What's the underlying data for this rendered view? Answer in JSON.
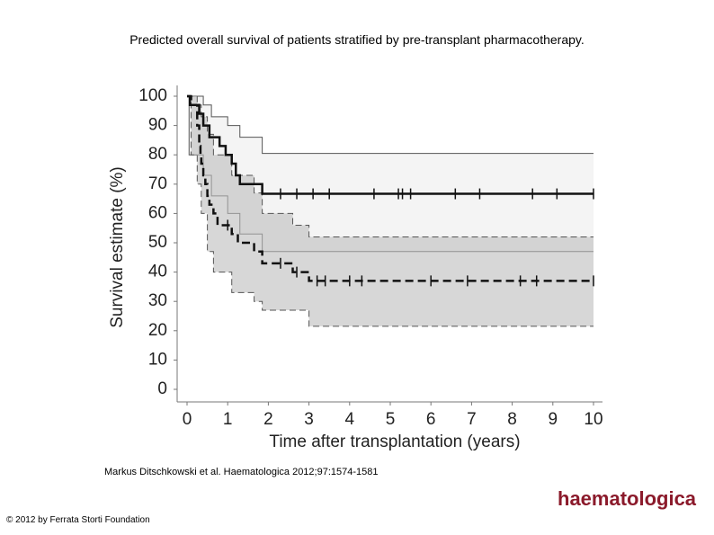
{
  "title": "Predicted overall survival of patients stratified by pre-transplant pharmacotherapy.",
  "citation": "Markus Ditschkowski et al. Haematologica 2012;97:1574-1581",
  "footer": "© 2012 by Ferrata Storti Foundation",
  "logo": "haematologica",
  "chart_data": {
    "type": "step",
    "xlabel": "Time after transplantation (years)",
    "ylabel": "Survival estimate (%)",
    "xlim": [
      0,
      10
    ],
    "ylim": [
      0,
      100
    ],
    "xticks": [
      0,
      1,
      2,
      3,
      4,
      5,
      6,
      7,
      8,
      9,
      10
    ],
    "yticks": [
      0,
      10,
      20,
      30,
      40,
      50,
      60,
      70,
      80,
      90,
      100
    ],
    "bands": [
      {
        "color": "#ececec",
        "x": [
          0,
          0.05,
          0.4,
          0.6,
          1.0,
          1.3,
          1.85,
          10
        ],
        "upper": [
          100,
          100,
          97,
          93,
          90,
          86,
          80.5,
          80.5
        ],
        "lower": [
          100,
          80,
          73,
          66,
          60,
          53,
          47,
          47
        ],
        "dash": false
      },
      {
        "color": "#bdbdbd",
        "x": [
          0,
          0.1,
          0.25,
          0.35,
          0.5,
          0.65,
          1.1,
          1.65,
          1.85,
          2.6,
          3.0,
          10
        ],
        "upper": [
          100,
          100,
          97,
          93,
          87,
          80,
          73,
          67,
          60,
          56,
          52,
          52
        ],
        "lower": [
          100,
          80,
          70,
          60,
          47,
          40,
          33,
          30,
          27,
          27,
          21.5,
          21.5
        ],
        "dash": true
      }
    ],
    "series": [
      {
        "color": "#111111",
        "dash": false,
        "x": [
          0,
          0.07,
          0.3,
          0.4,
          0.55,
          0.8,
          0.95,
          1.1,
          1.2,
          1.3,
          1.85,
          10
        ],
        "values": [
          100,
          97,
          94,
          90,
          86,
          83,
          80,
          77,
          73,
          70,
          66.7,
          66.7
        ],
        "censored": [
          2.3,
          2.7,
          3.1,
          3.5,
          4.6,
          5.2,
          5.3,
          5.5,
          6.6,
          7.2,
          8.5,
          9.1,
          10
        ]
      },
      {
        "color": "#111111",
        "dash": true,
        "x": [
          0,
          0.1,
          0.25,
          0.3,
          0.33,
          0.35,
          0.4,
          0.45,
          0.5,
          0.55,
          0.65,
          0.75,
          1.1,
          1.25,
          1.65,
          1.85,
          2.6,
          3.0,
          10
        ],
        "values": [
          100,
          97,
          90,
          83,
          80,
          77,
          73,
          70,
          66,
          63,
          60,
          56,
          53,
          50,
          47,
          43,
          40,
          37,
          37
        ],
        "censored": [
          1.0,
          2.3,
          2.7,
          3.2,
          3.4,
          4.0,
          4.3,
          6.0,
          6.9,
          8.2,
          8.6,
          10
        ]
      }
    ]
  }
}
